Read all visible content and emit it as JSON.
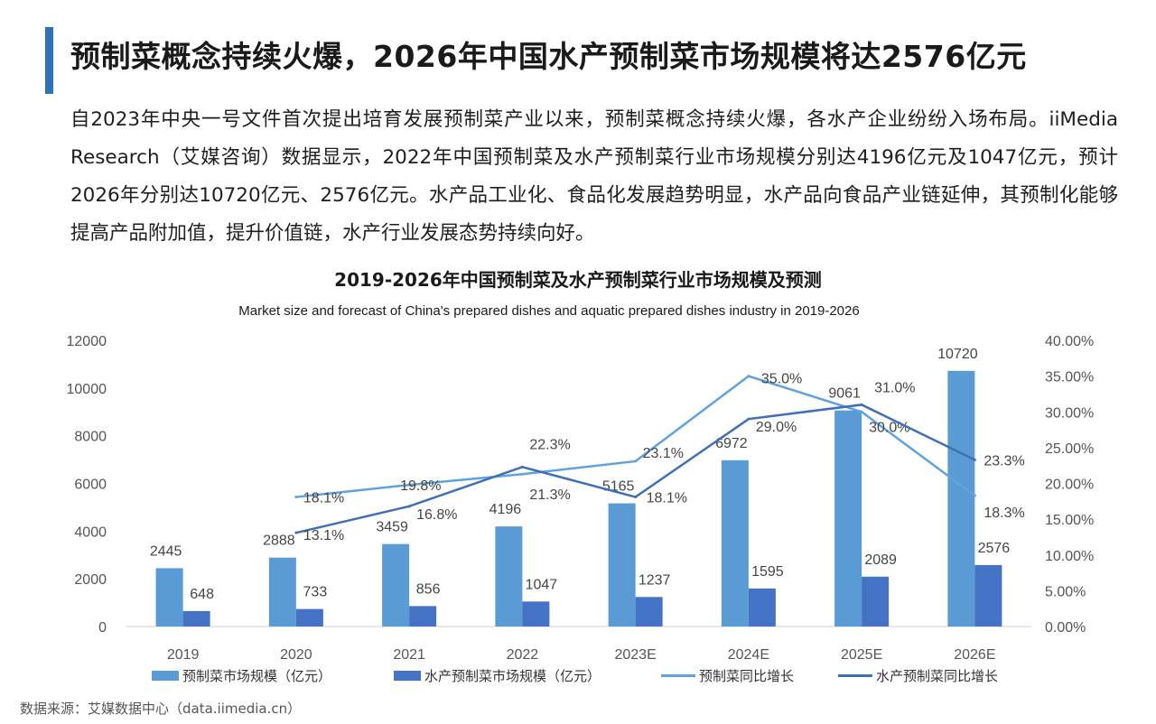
{
  "header": {
    "title": "预制菜概念持续火爆，2026年中国水产预制菜市场规模将达2576亿元"
  },
  "intro": {
    "paragraph": "自2023年中央一号文件首次提出培育发展预制菜产业以来，预制菜概念持续火爆，各水产企业纷纷入场布局。iiMedia Research（艾媒咨询）数据显示，2022年中国预制菜及水产预制菜行业市场规模分别达4196亿元及1047亿元，预计2026年分别达10720亿元、2576亿元。水产品工业化、食品化发展趋势明显，水产品向食品产业链延伸，其预制化能够提高产品附加值，提升价值链，水产行业发展态势持续向好。"
  },
  "chart_data": {
    "type": "bar",
    "title": "2019-2026年中国预制菜及水产预制菜行业市场规模及预测",
    "subtitle": "Market size and forecast of China's prepared dishes and aquatic prepared dishes industry in 2019-2026",
    "categories": [
      "2019",
      "2020",
      "2021",
      "2022",
      "2023E",
      "2024E",
      "2025E",
      "2026E"
    ],
    "y_left": {
      "min": 0,
      "max": 12000,
      "ticks": [
        "0",
        "2000",
        "4000",
        "6000",
        "8000",
        "10000",
        "12000"
      ]
    },
    "y_right": {
      "min": 0,
      "max": 40,
      "ticks": [
        "0.00%",
        "5.00%",
        "10.00%",
        "15.00%",
        "20.00%",
        "25.00%",
        "30.00%",
        "35.00%",
        "40.00%"
      ]
    },
    "grid": false,
    "legend_position": "bottom",
    "series": [
      {
        "name": "预制菜市场规模（亿元）",
        "kind": "bar",
        "axis": "left",
        "color": "#5b9bd5",
        "values": [
          2445,
          2888,
          3459,
          4196,
          5165,
          6972,
          9061,
          10720
        ],
        "labels": [
          "2445",
          "2888",
          "3459",
          "4196",
          "5165",
          "6972",
          "9061",
          "10720"
        ]
      },
      {
        "name": "水产预制菜市场规模（亿元）",
        "kind": "bar",
        "axis": "left",
        "color": "#4472c4",
        "values": [
          648,
          733,
          856,
          1047,
          1237,
          1595,
          2089,
          2576
        ],
        "labels": [
          "648",
          "733",
          "856",
          "1047",
          "1237",
          "1595",
          "2089",
          "2576"
        ]
      },
      {
        "name": "预制菜同比增长",
        "kind": "line",
        "axis": "right",
        "color": "#5ea3dd",
        "values": [
          null,
          18.1,
          19.8,
          21.3,
          23.1,
          35.0,
          30.0,
          18.3
        ],
        "labels": [
          "",
          "18.1%",
          "19.8%",
          "21.3%",
          "23.1%",
          "35.0%",
          "30.0%",
          "18.3%"
        ]
      },
      {
        "name": "水产预制菜同比增长",
        "kind": "line",
        "axis": "right",
        "color": "#3f6fb5",
        "values": [
          null,
          13.1,
          16.8,
          22.3,
          18.1,
          29.0,
          31.0,
          23.3
        ],
        "labels": [
          "",
          "13.1%",
          "16.8%",
          "22.3%",
          "18.1%",
          "29.0%",
          "31.0%",
          "23.3%"
        ]
      }
    ]
  },
  "footer": {
    "source": "数据来源：艾媒数据中心（data.iimedia.cn）"
  }
}
